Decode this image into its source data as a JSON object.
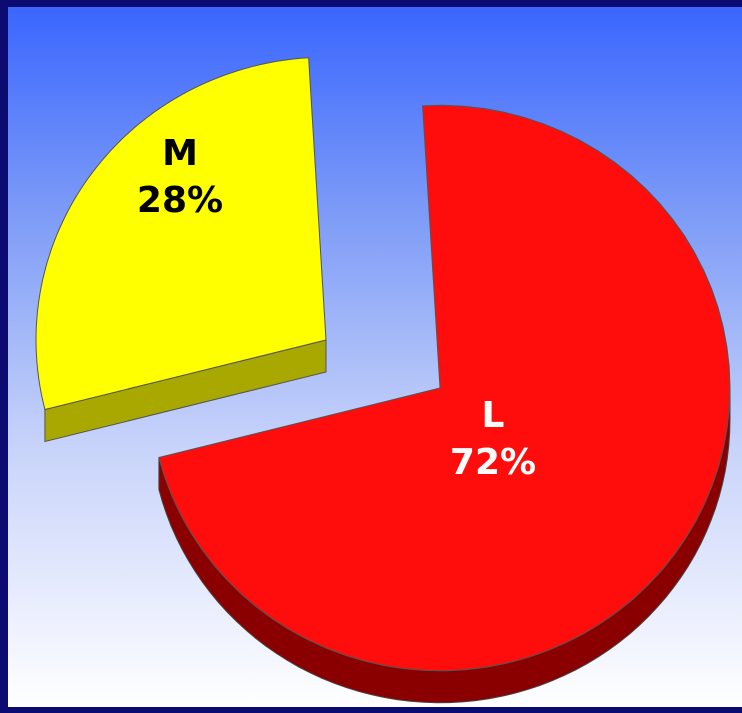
{
  "chart_data": {
    "type": "pie",
    "style": "3d-exploded",
    "slices": [
      {
        "category": "L",
        "value_label": "72%",
        "value": 72,
        "color": "#ff0d0d",
        "side_color": "#8a0000"
      },
      {
        "category": "M",
        "value_label": "28%",
        "value": 28,
        "color": "#ffff00",
        "side_color": "#a8a800"
      }
    ],
    "background": {
      "top_color": "#3a66ff",
      "bottom_color": "#ffffff",
      "frame_color": "#0b0b72"
    }
  }
}
